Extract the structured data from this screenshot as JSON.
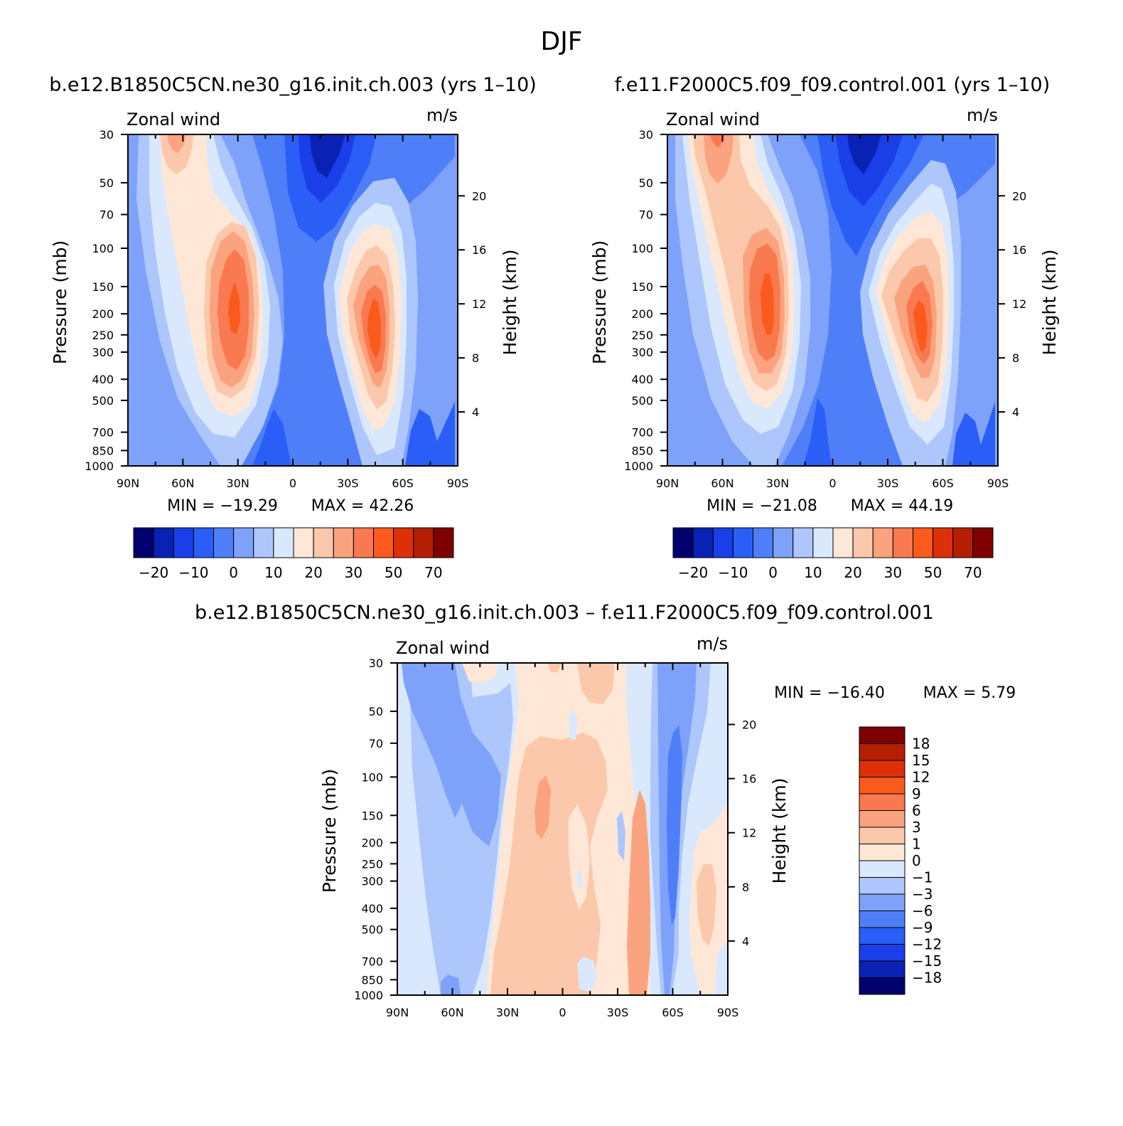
{
  "figure_title": "DJF",
  "chart_data": [
    {
      "type": "contour",
      "id": "panel1",
      "title": "b.e12.B1850C5CN.ne30_g16.init.ch.003 (yrs 1–10)",
      "variable_label": "Zonal wind",
      "units": "m/s",
      "xlabel": "",
      "ylabel": "Pressure (mb)",
      "ylabel_right": "Height (km)",
      "x_ticks": [
        "90N",
        "60N",
        "30N",
        "0",
        "30S",
        "60S",
        "90S"
      ],
      "x_range": [
        90,
        -90
      ],
      "y_ticks": [
        "30",
        "50",
        "70",
        "100",
        "150",
        "200",
        "250",
        "300",
        "400",
        "500",
        "700",
        "850",
        "1000"
      ],
      "y_range_mb": [
        30,
        1000
      ],
      "height_ticks": [
        "20",
        "16",
        "12",
        "8",
        "4"
      ],
      "min_label": "MIN = −19.29",
      "max_label": "MAX = 42.26",
      "min": -19.29,
      "max": 42.26,
      "contour_levels": [
        -25,
        -20,
        -15,
        -10,
        -5,
        0,
        5,
        10,
        15,
        20,
        25,
        30,
        40,
        50,
        60,
        70
      ],
      "colorbar": {
        "orientation": "horizontal",
        "colors": [
          "#00006e",
          "#0a22b4",
          "#1a3ee8",
          "#2a5ef6",
          "#4f7ff8",
          "#7ea2fa",
          "#adc6fc",
          "#dae8fe",
          "#fee7d6",
          "#fcc8ab",
          "#fba37e",
          "#f97950",
          "#fa5a1c",
          "#dd3008",
          "#b41f04",
          "#7e0000"
        ],
        "tick_labels": [
          "−20",
          "−10",
          "0",
          "10",
          "20",
          "30",
          "50",
          "70"
        ]
      }
    },
    {
      "type": "contour",
      "id": "panel2",
      "title": "f.e11.F2000C5.f09_f09.control.001 (yrs 1–10)",
      "variable_label": "Zonal wind",
      "units": "m/s",
      "xlabel": "",
      "ylabel": "Pressure (mb)",
      "ylabel_right": "Height (km)",
      "x_ticks": [
        "90N",
        "60N",
        "30N",
        "0",
        "30S",
        "60S",
        "90S"
      ],
      "x_range": [
        90,
        -90
      ],
      "y_ticks": [
        "30",
        "50",
        "70",
        "100",
        "150",
        "200",
        "250",
        "300",
        "400",
        "500",
        "700",
        "850",
        "1000"
      ],
      "y_range_mb": [
        30,
        1000
      ],
      "height_ticks": [
        "20",
        "16",
        "12",
        "8",
        "4"
      ],
      "min_label": "MIN = −21.08",
      "max_label": "MAX = 44.19",
      "min": -21.08,
      "max": 44.19,
      "contour_levels": [
        -25,
        -20,
        -15,
        -10,
        -5,
        0,
        5,
        10,
        15,
        20,
        25,
        30,
        40,
        50,
        60,
        70
      ],
      "colorbar": {
        "orientation": "horizontal",
        "colors": [
          "#00006e",
          "#0a22b4",
          "#1a3ee8",
          "#2a5ef6",
          "#4f7ff8",
          "#7ea2fa",
          "#adc6fc",
          "#dae8fe",
          "#fee7d6",
          "#fcc8ab",
          "#fba37e",
          "#f97950",
          "#fa5a1c",
          "#dd3008",
          "#b41f04",
          "#7e0000"
        ],
        "tick_labels": [
          "−20",
          "−10",
          "0",
          "10",
          "20",
          "30",
          "50",
          "70"
        ]
      }
    },
    {
      "type": "contour",
      "id": "panel3",
      "title": "b.e12.B1850C5CN.ne30_g16.init.ch.003 – f.e11.F2000C5.f09_f09.control.001",
      "variable_label": "Zonal wind",
      "units": "m/s",
      "xlabel": "",
      "ylabel": "Pressure (mb)",
      "ylabel_right": "Height (km)",
      "x_ticks": [
        "90N",
        "60N",
        "30N",
        "0",
        "30S",
        "60S",
        "90S"
      ],
      "x_range": [
        90,
        -90
      ],
      "y_ticks": [
        "30",
        "50",
        "70",
        "100",
        "150",
        "200",
        "250",
        "300",
        "400",
        "500",
        "700",
        "850",
        "1000"
      ],
      "y_range_mb": [
        30,
        1000
      ],
      "height_ticks": [
        "20",
        "16",
        "12",
        "8",
        "4"
      ],
      "min_label": "MIN = −16.40",
      "max_label": "MAX = 5.79",
      "min": -16.4,
      "max": 5.79,
      "contour_levels": [
        -18,
        -15,
        -12,
        -9,
        -6,
        -3,
        -1,
        0,
        1,
        3,
        6,
        9,
        12,
        15,
        18
      ],
      "colorbar": {
        "orientation": "vertical",
        "colors_top_to_bottom": [
          "#7e0000",
          "#b41f04",
          "#dd3008",
          "#fa5a1c",
          "#f97950",
          "#fba37e",
          "#fcc8ab",
          "#fee7d6",
          "#dae8fe",
          "#adc6fc",
          "#7ea2fa",
          "#4f7ff8",
          "#2a5ef6",
          "#1a3ee8",
          "#0a22b4",
          "#00006e"
        ],
        "tick_labels_top_to_bottom": [
          "18",
          "15",
          "12",
          "9",
          "6",
          "3",
          "1",
          "0",
          "−1",
          "−3",
          "−6",
          "−9",
          "−12",
          "−15",
          "−18"
        ]
      }
    }
  ]
}
